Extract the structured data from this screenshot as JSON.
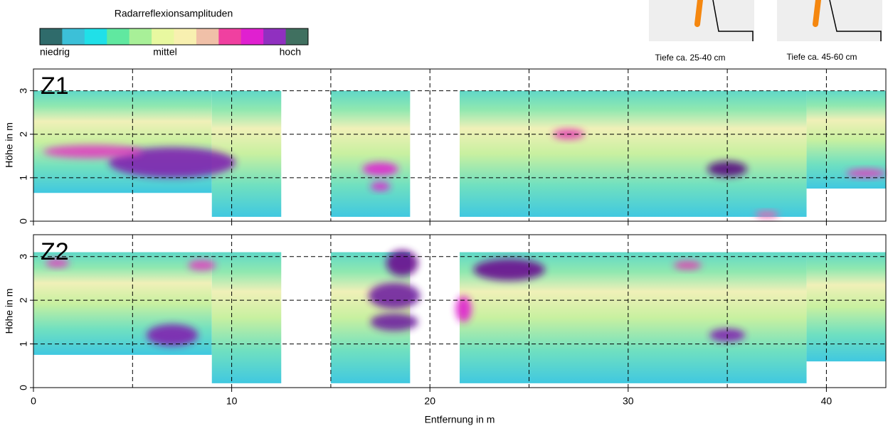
{
  "legend": {
    "title": "Radarreflexionsamplituden",
    "colors": [
      "#2f6b6b",
      "#3cc0d8",
      "#20e0e8",
      "#60e8a0",
      "#a8f098",
      "#e8f8a0",
      "#f8f0b0",
      "#f0c0a8",
      "#f040a0",
      "#e020d0",
      "#9030c0",
      "#407060"
    ],
    "labels": [
      "niedrig",
      "mittel",
      "hoch"
    ]
  },
  "insets": [
    {
      "caption": "Tiefe ca. 25-40 cm"
    },
    {
      "caption": "Tiefe ca. 45-60 cm"
    }
  ],
  "chart_data": [
    {
      "type": "heatmap",
      "label": "Z1",
      "ylabel": "Höhe in m",
      "xlim": [
        0,
        43
      ],
      "ylim": [
        0,
        3.5
      ],
      "yticks": [
        0,
        1,
        2,
        3
      ],
      "xticks": [
        0,
        10,
        20,
        30,
        40
      ],
      "xgrid": [
        5,
        15,
        25,
        35
      ],
      "grid": true,
      "regions": [
        {
          "x": [
            0,
            9
          ],
          "y": [
            0.65,
            3
          ]
        },
        {
          "x": [
            9,
            12.5
          ],
          "y": [
            0.1,
            3
          ]
        },
        {
          "x": [
            15,
            19
          ],
          "y": [
            0.1,
            3
          ]
        },
        {
          "x": [
            21.5,
            39
          ],
          "y": [
            0.1,
            3
          ]
        },
        {
          "x": [
            39,
            43
          ],
          "y": [
            0.75,
            3
          ]
        }
      ],
      "anomalies": [
        {
          "x": 7,
          "y": 1.35,
          "size": [
            3.2,
            0.35
          ],
          "color": "#8020b0"
        },
        {
          "x": 3,
          "y": 1.6,
          "size": [
            2.5,
            0.15
          ],
          "color": "#e040c0"
        },
        {
          "x": 17.5,
          "y": 1.2,
          "size": [
            0.9,
            0.15
          ],
          "color": "#e020d0"
        },
        {
          "x": 17.5,
          "y": 0.8,
          "size": [
            0.5,
            0.1
          ],
          "color": "#e020d0"
        },
        {
          "x": 27,
          "y": 2.0,
          "size": [
            0.8,
            0.12
          ],
          "color": "#e040b0"
        },
        {
          "x": 35,
          "y": 1.2,
          "size": [
            1.0,
            0.18
          ],
          "color": "#5a1080"
        },
        {
          "x": 42,
          "y": 1.1,
          "size": [
            1.0,
            0.1
          ],
          "color": "#e040c0"
        },
        {
          "x": 37,
          "y": 0.15,
          "size": [
            0.6,
            0.08
          ],
          "color": "#f060b0"
        }
      ]
    },
    {
      "type": "heatmap",
      "label": "Z2",
      "ylabel": "Höhe in m",
      "xlabel": "Entfernung in m",
      "xlim": [
        0,
        43
      ],
      "ylim": [
        0,
        3.5
      ],
      "yticks": [
        0,
        1,
        2,
        3
      ],
      "xticks": [
        0,
        10,
        20,
        30,
        40
      ],
      "xgrid": [
        5,
        15,
        25,
        35
      ],
      "grid": true,
      "regions": [
        {
          "x": [
            0,
            9
          ],
          "y": [
            0.75,
            3.1
          ]
        },
        {
          "x": [
            9,
            12.5
          ],
          "y": [
            0.1,
            3.1
          ]
        },
        {
          "x": [
            15,
            19
          ],
          "y": [
            0.1,
            3.1
          ]
        },
        {
          "x": [
            21.5,
            39
          ],
          "y": [
            0.1,
            3.1
          ]
        },
        {
          "x": [
            39,
            43
          ],
          "y": [
            0.6,
            3.1
          ]
        }
      ],
      "anomalies": [
        {
          "x": 7,
          "y": 1.2,
          "size": [
            1.3,
            0.25
          ],
          "color": "#8020b0"
        },
        {
          "x": 18.2,
          "y": 2.1,
          "size": [
            1.3,
            0.3
          ],
          "color": "#7020a0"
        },
        {
          "x": 18.2,
          "y": 1.5,
          "size": [
            1.2,
            0.2
          ],
          "color": "#7020a0"
        },
        {
          "x": 18.6,
          "y": 2.85,
          "size": [
            0.8,
            0.3
          ],
          "color": "#6a1090"
        },
        {
          "x": 24,
          "y": 2.7,
          "size": [
            1.8,
            0.25
          ],
          "color": "#6a1090"
        },
        {
          "x": 21.7,
          "y": 1.8,
          "size": [
            0.4,
            0.3
          ],
          "color": "#e020d0"
        },
        {
          "x": 33,
          "y": 2.8,
          "size": [
            0.7,
            0.1
          ],
          "color": "#e040b0"
        },
        {
          "x": 35,
          "y": 1.2,
          "size": [
            0.9,
            0.15
          ],
          "color": "#8020b0"
        },
        {
          "x": 1.2,
          "y": 2.85,
          "size": [
            0.6,
            0.1
          ],
          "color": "#e040c0"
        },
        {
          "x": 8.5,
          "y": 2.8,
          "size": [
            0.7,
            0.12
          ],
          "color": "#e040c0"
        }
      ]
    }
  ]
}
